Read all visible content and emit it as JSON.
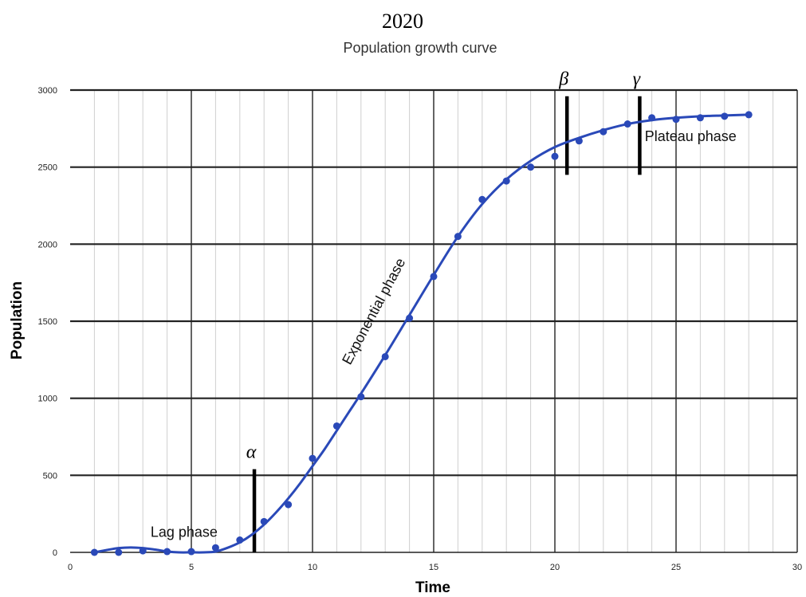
{
  "header": {
    "year": "2020"
  },
  "chart_data": {
    "type": "scatter",
    "title": "Population growth curve",
    "xlabel": "Time",
    "ylabel": "Population",
    "xlim": [
      0,
      30
    ],
    "ylim": [
      0,
      3000
    ],
    "x_ticks": [
      "0",
      "5",
      "10",
      "15",
      "20",
      "25",
      "30"
    ],
    "y_ticks": [
      "0",
      "500",
      "1000",
      "1500",
      "2000",
      "2500",
      "3000"
    ],
    "grid": true,
    "series": [
      {
        "color": "#2a49b8",
        "points": [
          [
            1,
            0
          ],
          [
            2,
            0
          ],
          [
            3,
            10
          ],
          [
            4,
            5
          ],
          [
            5,
            5
          ],
          [
            6,
            30
          ],
          [
            7,
            80
          ],
          [
            8,
            200
          ],
          [
            9,
            310
          ],
          [
            10,
            610
          ],
          [
            11,
            820
          ],
          [
            12,
            1010
          ],
          [
            13,
            1270
          ],
          [
            14,
            1520
          ],
          [
            15,
            1790
          ],
          [
            16,
            2050
          ],
          [
            17,
            2290
          ],
          [
            18,
            2410
          ],
          [
            19,
            2500
          ],
          [
            20,
            2570
          ],
          [
            21,
            2670
          ],
          [
            22,
            2730
          ],
          [
            23,
            2780
          ],
          [
            24,
            2820
          ],
          [
            25,
            2810
          ],
          [
            26,
            2820
          ],
          [
            27,
            2830
          ],
          [
            28,
            2840
          ]
        ],
        "curve": [
          [
            1,
            0
          ],
          [
            1.5,
            15
          ],
          [
            2,
            28
          ],
          [
            2.5,
            32
          ],
          [
            3,
            28
          ],
          [
            3.5,
            18
          ],
          [
            4,
            6
          ],
          [
            4.5,
            0
          ],
          [
            5,
            0
          ],
          [
            5.5,
            0
          ],
          [
            6,
            5
          ],
          [
            6.5,
            30
          ],
          [
            7,
            65
          ],
          [
            7.5,
            115
          ],
          [
            8,
            180
          ],
          [
            8.5,
            260
          ],
          [
            9,
            350
          ],
          [
            9.5,
            450
          ],
          [
            10,
            560
          ],
          [
            10.5,
            670
          ],
          [
            11,
            790
          ],
          [
            11.5,
            910
          ],
          [
            12,
            1030
          ],
          [
            13,
            1280
          ],
          [
            14,
            1540
          ],
          [
            15,
            1800
          ],
          [
            16,
            2050
          ],
          [
            17,
            2260
          ],
          [
            18,
            2420
          ],
          [
            19,
            2540
          ],
          [
            20,
            2630
          ],
          [
            21,
            2690
          ],
          [
            22,
            2740
          ],
          [
            23,
            2780
          ],
          [
            24,
            2805
          ],
          [
            25,
            2820
          ],
          [
            26,
            2830
          ],
          [
            27,
            2835
          ],
          [
            28,
            2840
          ]
        ]
      }
    ],
    "markers": [
      {
        "label": "α",
        "x": 7.6,
        "y_from": 0,
        "y_to": 540
      },
      {
        "label": "β",
        "x": 20.5,
        "y_from": 2450,
        "y_to": 2960
      },
      {
        "label": "γ",
        "x": 23.5,
        "y_from": 2450,
        "y_to": 2960
      }
    ],
    "annotations": [
      {
        "text": "Lag phase",
        "x": 4.7,
        "y": 100,
        "rotate": 0
      },
      {
        "text": "Exponential phase",
        "x": 12.7,
        "y": 1550,
        "rotate": -62
      },
      {
        "text": "Plateau phase",
        "x": 25.6,
        "y": 2670,
        "rotate": 0
      }
    ]
  }
}
